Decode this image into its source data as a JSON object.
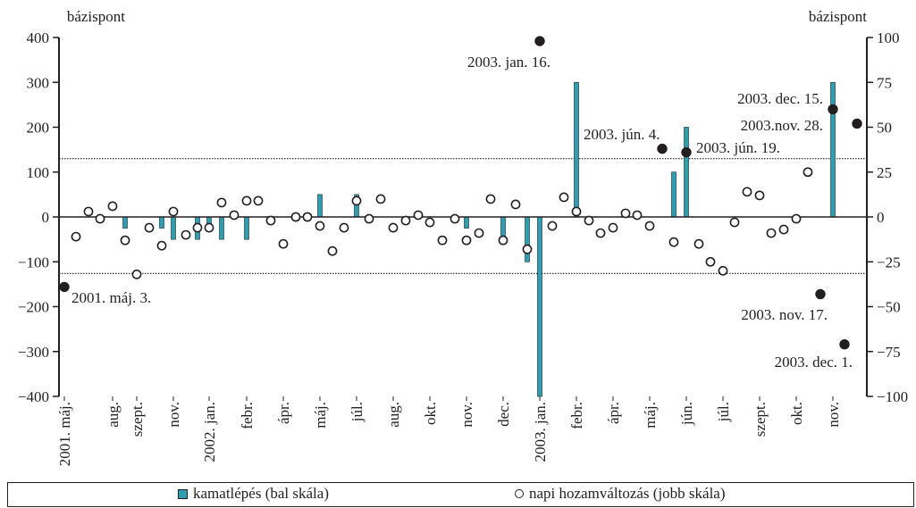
{
  "chart_data": {
    "type": "bar+scatter",
    "left_axis_label": "bázispont",
    "right_axis_label": "bázispont",
    "left_ylim": [
      -400,
      400
    ],
    "left_ticks": [
      "400",
      "300",
      "200",
      "100",
      "0",
      "−100",
      "−200",
      "−300",
      "−400"
    ],
    "right_ylim": [
      -100,
      100
    ],
    "right_ticks": [
      "100",
      "75",
      "50",
      "25",
      "0",
      "−25",
      "−50",
      "−75",
      "−100"
    ],
    "x_tick_labels": [
      "2001. máj.",
      "aug.",
      "szept.",
      "nov.",
      "2002. jan.",
      "febr.",
      "ápr.",
      "máj.",
      "júl.",
      "aug.",
      "okt.",
      "nov.",
      "dec.",
      "2003. jan.",
      "febr.",
      "ápr.",
      "máj.",
      "jún.",
      "júl.",
      "szept.",
      "okt.",
      "nov."
    ],
    "reference_lines_right_scale": [
      32.5,
      -31.5
    ],
    "colors": {
      "bars": "#2aa0b5",
      "outline": "#231f20",
      "dots": "#231f20"
    },
    "series": [
      {
        "name": "kamatlépés (bal skála)",
        "axis": "left",
        "kind": "bar",
        "points": [
          {
            "x": 140,
            "y": -25
          },
          {
            "x": 181,
            "y": -25
          },
          {
            "x": 194,
            "y": -50
          },
          {
            "x": 221,
            "y": -50
          },
          {
            "x": 234,
            "y": -25
          },
          {
            "x": 248,
            "y": -50
          },
          {
            "x": 276,
            "y": -50
          },
          {
            "x": 358,
            "y": 50
          },
          {
            "x": 399,
            "y": 50
          },
          {
            "x": 522,
            "y": -25
          },
          {
            "x": 563,
            "y": -50
          },
          {
            "x": 590,
            "y": -100
          },
          {
            "x": 604,
            "y": -400
          },
          {
            "x": 645,
            "y": 300
          },
          {
            "x": 754,
            "y": 100
          },
          {
            "x": 768,
            "y": 200
          },
          {
            "x": 932,
            "y": 300
          }
        ]
      },
      {
        "name": "napi hozamváltozás (jobb skála)",
        "axis": "right",
        "kind": "marker",
        "points": [
          {
            "x": 72,
            "y": -39,
            "filled": true
          },
          {
            "x": 85,
            "y": -11
          },
          {
            "x": 99,
            "y": 3
          },
          {
            "x": 112,
            "y": -1
          },
          {
            "x": 126,
            "y": 6
          },
          {
            "x": 140,
            "y": -13
          },
          {
            "x": 153,
            "y": -32
          },
          {
            "x": 167,
            "y": -6
          },
          {
            "x": 181,
            "y": -16
          },
          {
            "x": 194,
            "y": 3
          },
          {
            "x": 208,
            "y": -10
          },
          {
            "x": 221,
            "y": -6
          },
          {
            "x": 234,
            "y": -6
          },
          {
            "x": 248,
            "y": 8
          },
          {
            "x": 262,
            "y": 1
          },
          {
            "x": 276,
            "y": 9
          },
          {
            "x": 289,
            "y": 9
          },
          {
            "x": 303,
            "y": -2
          },
          {
            "x": 317,
            "y": -15
          },
          {
            "x": 331,
            "y": 0
          },
          {
            "x": 344,
            "y": 0
          },
          {
            "x": 358,
            "y": -5
          },
          {
            "x": 372,
            "y": -19
          },
          {
            "x": 385,
            "y": -6
          },
          {
            "x": 399,
            "y": 9
          },
          {
            "x": 413,
            "y": -1
          },
          {
            "x": 426,
            "y": 10
          },
          {
            "x": 440,
            "y": -6
          },
          {
            "x": 454,
            "y": -2
          },
          {
            "x": 468,
            "y": 1
          },
          {
            "x": 481,
            "y": -3
          },
          {
            "x": 495,
            "y": -13
          },
          {
            "x": 509,
            "y": -1
          },
          {
            "x": 522,
            "y": -13
          },
          {
            "x": 536,
            "y": -9
          },
          {
            "x": 549,
            "y": 10
          },
          {
            "x": 563,
            "y": -13
          },
          {
            "x": 577,
            "y": 7
          },
          {
            "x": 590,
            "y": -18
          },
          {
            "x": 604,
            "y": 98,
            "filled": true
          },
          {
            "x": 618,
            "y": -5
          },
          {
            "x": 631,
            "y": 11
          },
          {
            "x": 645,
            "y": 3
          },
          {
            "x": 659,
            "y": -2
          },
          {
            "x": 672,
            "y": -9
          },
          {
            "x": 686,
            "y": -6
          },
          {
            "x": 700,
            "y": 2
          },
          {
            "x": 713,
            "y": 1
          },
          {
            "x": 727,
            "y": -5
          },
          {
            "x": 741,
            "y": 38,
            "filled": true
          },
          {
            "x": 754,
            "y": -14
          },
          {
            "x": 768,
            "y": 36,
            "filled": true
          },
          {
            "x": 782,
            "y": -15
          },
          {
            "x": 795,
            "y": -25
          },
          {
            "x": 809,
            "y": -30
          },
          {
            "x": 822,
            "y": -3
          },
          {
            "x": 836,
            "y": 14
          },
          {
            "x": 850,
            "y": 12
          },
          {
            "x": 863,
            "y": -9
          },
          {
            "x": 877,
            "y": -7
          },
          {
            "x": 891,
            "y": -1
          },
          {
            "x": 904,
            "y": 25
          },
          {
            "x": 918,
            "y": -43,
            "filled": true
          },
          {
            "x": 932,
            "y": 60,
            "filled": true
          },
          {
            "x": 945,
            "y": -71,
            "filled": true
          },
          {
            "x": 959,
            "y": 52,
            "filled": true
          }
        ]
      }
    ],
    "annotations": [
      "2001. máj. 3.",
      "2003. jan. 16.",
      "2003. jún. 4.",
      "2003. jún. 19.",
      "2003. dec. 15.",
      "2003.nov. 28.",
      "2003. nov. 17.",
      "2003. dec. 1."
    ],
    "legend": {
      "placement": "bottom"
    }
  },
  "legend": {
    "bar_label": "kamatlépés (bal skála)",
    "dot_label": "napi hozamváltozás (jobb skála)"
  }
}
